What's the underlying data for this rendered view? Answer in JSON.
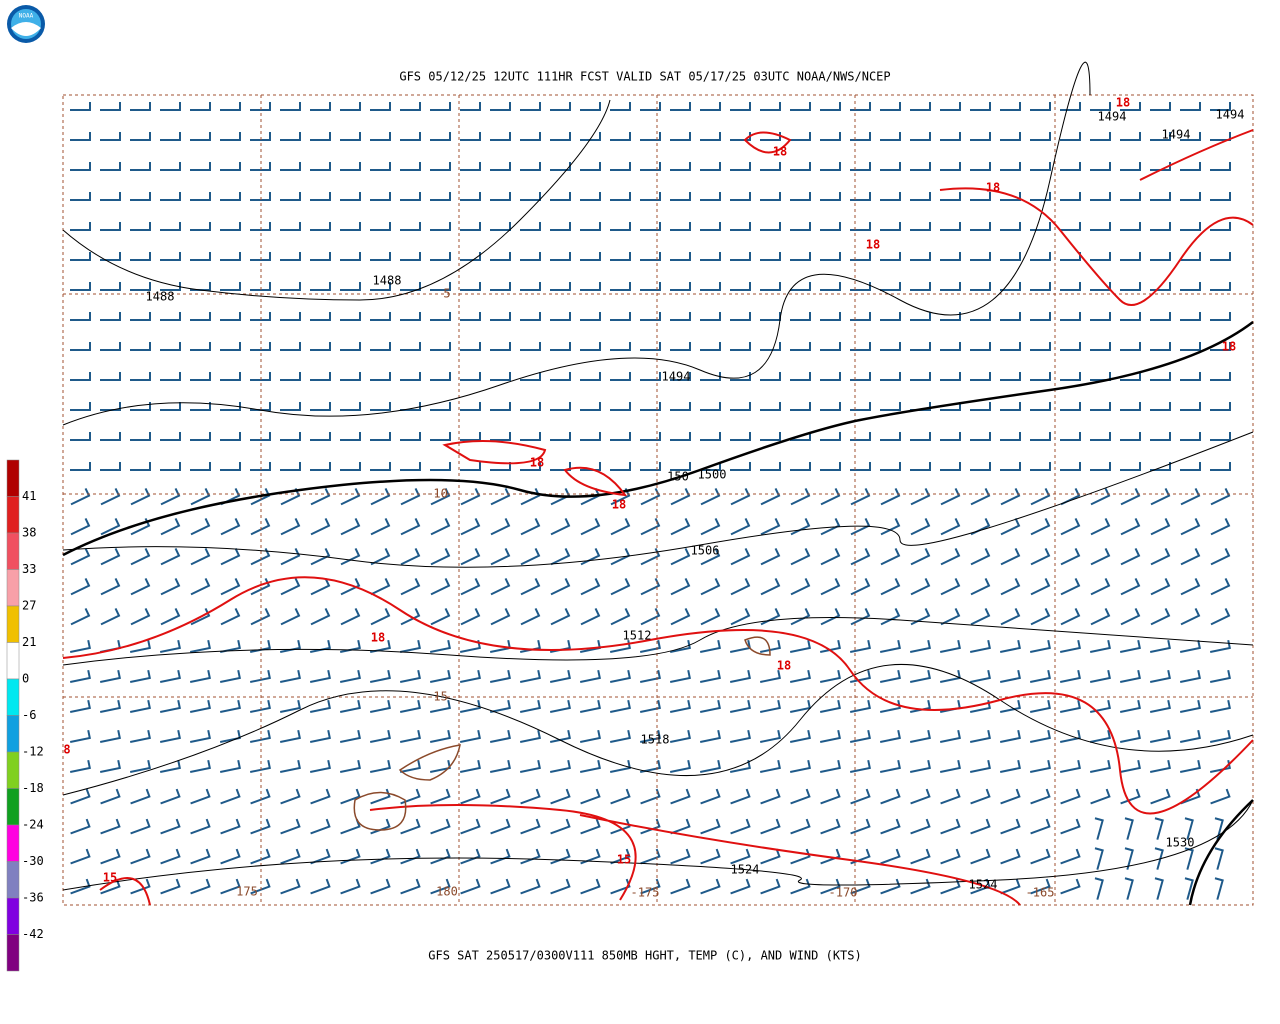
{
  "logo": "NOAA",
  "title": "GFS 05/12/25 12UTC 111HR FCST VALID SAT 05/17/25 03UTC NOAA/NWS/NCEP",
  "caption": "GFS SAT 250517/0300V111 850MB HGHT, TEMP (C), AND WIND (KTS)",
  "colorbar": {
    "labels": [
      "41",
      "38",
      "33",
      "27",
      "21",
      "0",
      "-6",
      "-12",
      "-18",
      "-24",
      "-30",
      "-36",
      "-42"
    ],
    "colors": [
      "#b00000",
      "#e02020",
      "#f05060",
      "#f8a0a8",
      "#f0c000",
      "#ffffff",
      "#00e8f0",
      "#10a0e0",
      "#80d020",
      "#10a020",
      "#ff00e0",
      "#8080c0",
      "#8000e0",
      "#800080"
    ]
  },
  "height_labels": [
    "1494",
    "1494",
    "1494",
    "1488",
    "1488",
    "1494",
    "150",
    "1500",
    "1506",
    "1512",
    "1518",
    "1524",
    "1524",
    "1530"
  ],
  "temp_labels": [
    "18",
    "18",
    "18",
    "18",
    "18",
    "18",
    "18",
    "18",
    "18",
    "15",
    "15",
    "8"
  ],
  "coord_labels": [
    "5",
    "-10",
    "-15",
    "175",
    "180",
    "-175",
    "-170",
    "-165"
  ]
}
